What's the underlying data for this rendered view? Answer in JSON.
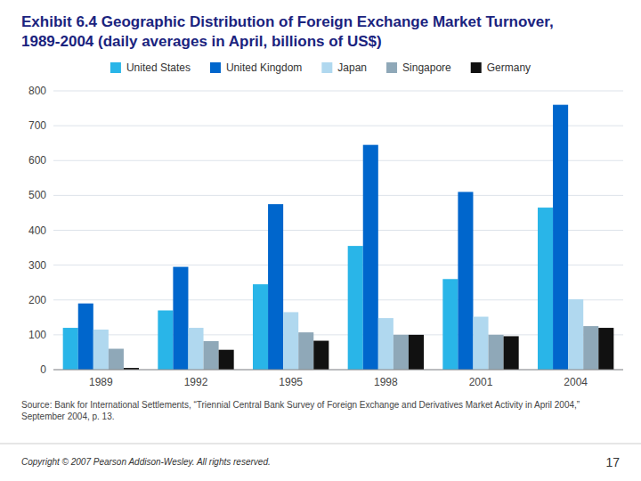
{
  "chart_data": {
    "type": "bar",
    "title": "Exhibit 6.4 Geographic Distribution of Foreign Exchange Market Turnover, 1989-2004 (daily averages in April, billions of US$)",
    "categories": [
      "1989",
      "1992",
      "1995",
      "1998",
      "2001",
      "2004"
    ],
    "series": [
      {
        "name": "United States",
        "color": "#29b5e8",
        "values": [
          120,
          170,
          245,
          355,
          260,
          465
        ]
      },
      {
        "name": "United Kingdom",
        "color": "#0066cc",
        "values": [
          190,
          295,
          475,
          645,
          510,
          760
        ]
      },
      {
        "name": "Japan",
        "color": "#b0d8ef",
        "values": [
          115,
          120,
          165,
          148,
          152,
          202
        ]
      },
      {
        "name": "Singapore",
        "color": "#8fa8b8",
        "values": [
          60,
          82,
          107,
          100,
          100,
          125
        ]
      },
      {
        "name": "Germany",
        "color": "#111111",
        "values": [
          5,
          57,
          83,
          100,
          96,
          120
        ]
      }
    ],
    "ylim": [
      0,
      800
    ],
    "yticks": [
      0,
      100,
      200,
      300,
      400,
      500,
      600,
      700,
      800
    ],
    "grid": true,
    "legend": "top",
    "annotations": [
      "Source: Bank for International Settlements, “Triennial Central Bank Survey of Foreign Exchange and Derivatives Market Activity in April 2004,” September 2004, p. 13.",
      "Copyright © 2007 Pearson Addison-Wesley. All rights reserved.",
      "17"
    ]
  }
}
